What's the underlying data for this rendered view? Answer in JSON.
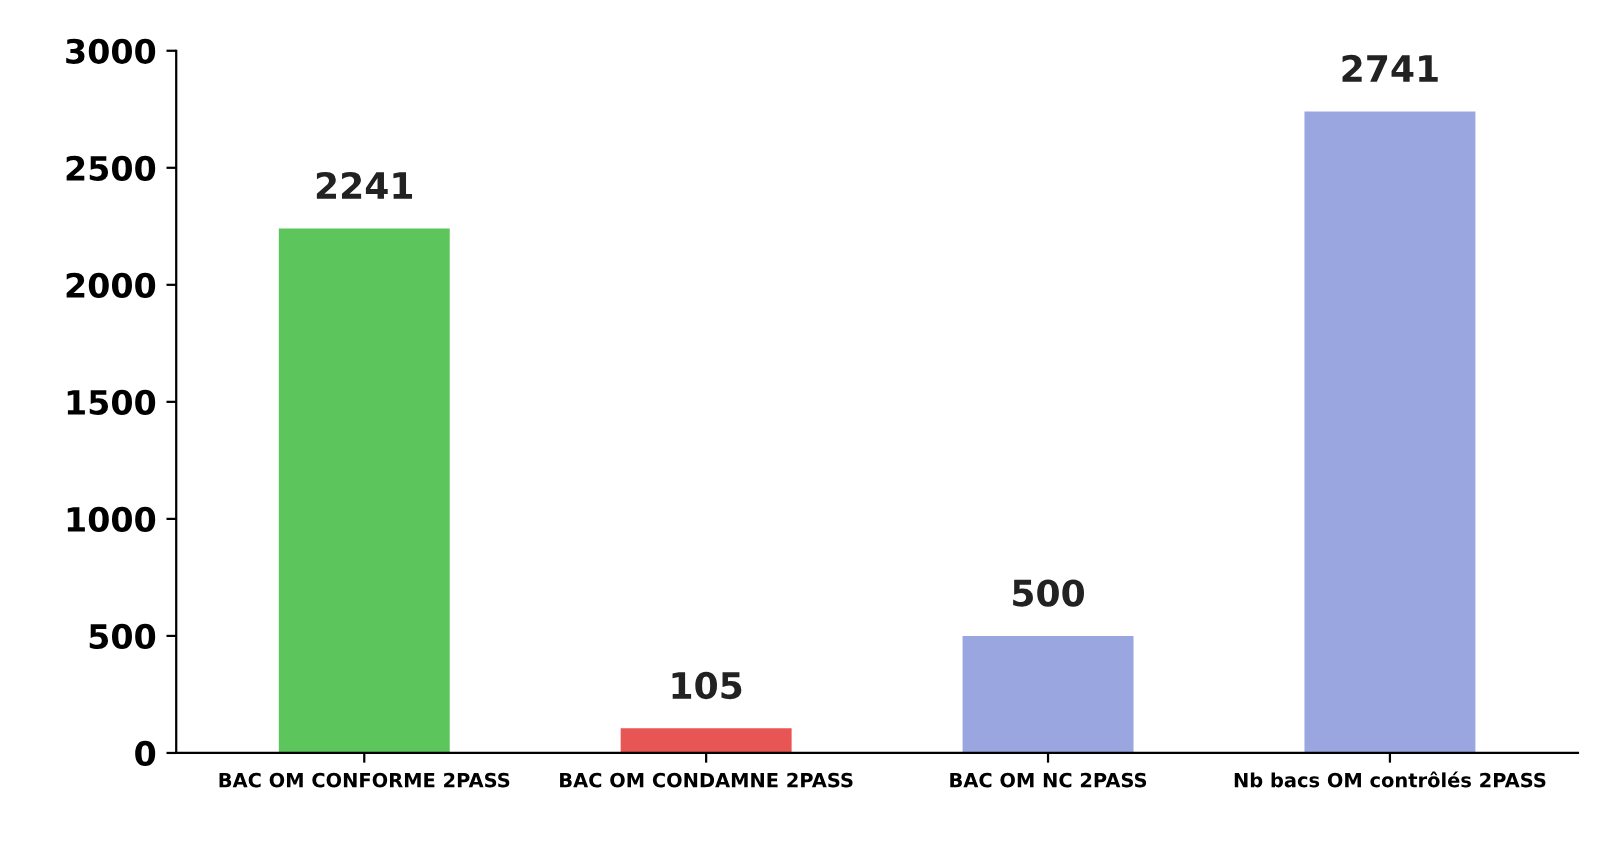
{
  "chart_data": {
    "type": "bar",
    "categories": [
      "BAC OM CONFORME 2PASS",
      "BAC OM CONDAMNE 2PASS",
      "BAC OM NC 2PASS",
      "Nb bacs OM contrôlés 2PASS"
    ],
    "values": [
      2241,
      105,
      500,
      2741
    ],
    "colors": [
      "#5cc55c",
      "#e85555",
      "#9aa6e0",
      "#9aa6e0"
    ],
    "ylim": [
      0,
      3000
    ],
    "yticks": [
      0,
      500,
      1000,
      1500,
      2000,
      2500,
      3000
    ],
    "grid": false,
    "data_labels": true
  }
}
